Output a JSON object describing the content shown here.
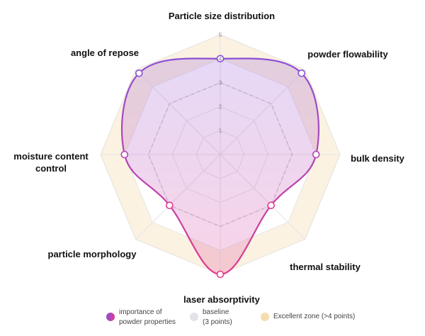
{
  "chart_data": {
    "type": "radar",
    "axes": [
      "Particle size distribution",
      "powder flowability",
      "bulk density",
      "thermal stability",
      "laser absorptivity",
      "particle morphology",
      "moisture content control",
      "angle of repose"
    ],
    "rlim": [
      0,
      5
    ],
    "ticks": [
      "1",
      "2",
      "3",
      "4",
      "5"
    ],
    "series": [
      {
        "name": "importance of powder properties",
        "values": [
          4.0,
          4.8,
          4.0,
          3.0,
          5.0,
          3.0,
          4.0,
          4.8
        ],
        "gradient": [
          "#8A4FD8",
          "#E23A8E"
        ]
      }
    ],
    "baseline": {
      "name": "baseline (3 points)",
      "value": 3
    },
    "excellent_zone": {
      "name": "Excellent zone (>4 points)",
      "from": 4,
      "to": 5
    },
    "grid": true,
    "legend_position": "bottom",
    "colors": {
      "series_top": "#8A4FD8",
      "series_bottom": "#E23A8E",
      "baseline": "#C8C8D0",
      "excellent_zone": "#F6D9A6",
      "grid": "#E4E4E4"
    }
  },
  "legend": {
    "items": [
      {
        "lines": [
          "importance of",
          "powder properties"
        ]
      },
      {
        "lines": [
          "baseline",
          "(3 points)"
        ]
      },
      {
        "lines": [
          "Excellent zone (>4 points)"
        ]
      }
    ]
  }
}
